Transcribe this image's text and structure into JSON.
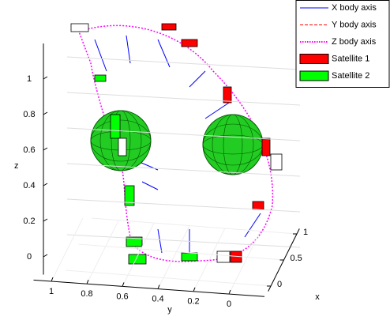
{
  "chart_data": {
    "type": "3d-trajectory",
    "xlabel": "x",
    "ylabel": "y",
    "zlabel": "z",
    "xlim": [
      -0.1,
      1.1
    ],
    "xticks": [
      0,
      0.5,
      1
    ],
    "ylim": [
      1.1,
      -0.2
    ],
    "yticks": [
      1,
      0.8,
      0.6,
      0.4,
      0.2,
      0
    ],
    "zlim": [
      -0.1,
      1.2
    ],
    "zticks": [
      0,
      0.2,
      0.4,
      0.6,
      0.8,
      1
    ],
    "grid": true,
    "legend_position": "upper right",
    "legend": [
      {
        "name": "X body axis",
        "color": "#0000ff",
        "style": "solid"
      },
      {
        "name": "Y body axis",
        "color": "#ff0000",
        "style": "dashed"
      },
      {
        "name": "Z body axis",
        "color": "#ff00ff",
        "style": "dotted"
      },
      {
        "name": "Satellite 1",
        "color": "#ff0000",
        "style": "patch"
      },
      {
        "name": "Satellite 2",
        "color": "#00ff00",
        "style": "patch"
      }
    ]
  }
}
